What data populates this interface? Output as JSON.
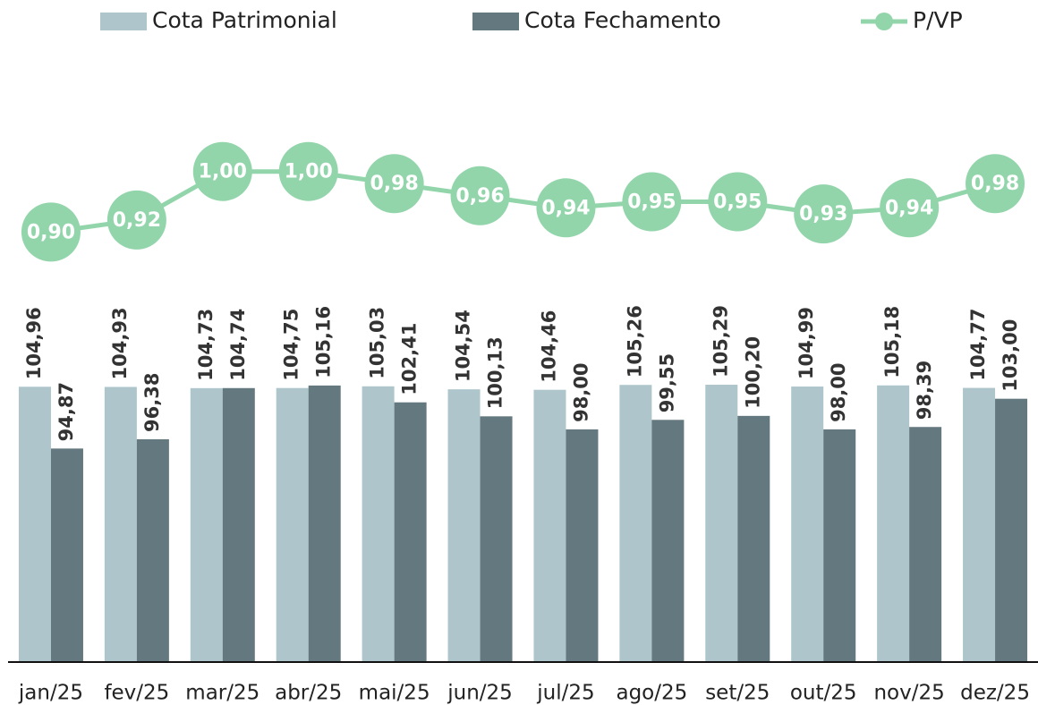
{
  "chart_data": {
    "type": "bar-line",
    "categories": [
      "jan/25",
      "fev/25",
      "mar/25",
      "abr/25",
      "mai/25",
      "jun/25",
      "jul/25",
      "ago/25",
      "set/25",
      "out/25",
      "nov/25",
      "dez/25"
    ],
    "series": [
      {
        "name": "Cota Patrimonial",
        "type": "bar",
        "color": "#adc5cb",
        "values": [
          104.96,
          104.93,
          104.73,
          104.75,
          105.03,
          104.54,
          104.46,
          105.26,
          105.29,
          104.99,
          105.18,
          104.77
        ],
        "value_labels": [
          "104,96",
          "104,93",
          "104,73",
          "104,75",
          "105,03",
          "104,54",
          "104,46",
          "105,26",
          "105,29",
          "104,99",
          "105,18",
          "104,77"
        ]
      },
      {
        "name": "Cota Fechamento",
        "type": "bar",
        "color": "#64787f",
        "values": [
          94.87,
          96.38,
          104.74,
          105.16,
          102.41,
          100.13,
          98.0,
          99.55,
          100.2,
          98.0,
          98.39,
          103.0
        ],
        "value_labels": [
          "94,87",
          "96,38",
          "104,74",
          "105,16",
          "102,41",
          "100,13",
          "98,00",
          "99,55",
          "100,20",
          "98,00",
          "98,39",
          "103,00"
        ]
      },
      {
        "name": "P/VP",
        "type": "line",
        "axis": "y2",
        "color": "#92d5ab",
        "values": [
          0.9,
          0.92,
          1.0,
          1.0,
          0.98,
          0.96,
          0.94,
          0.95,
          0.95,
          0.93,
          0.94,
          0.98
        ],
        "value_labels": [
          "0,90",
          "0,92",
          "1,00",
          "1,00",
          "0,98",
          "0,96",
          "0,94",
          "0,95",
          "0,95",
          "0,93",
          "0,94",
          "0,98"
        ]
      }
    ],
    "ylim": [
      60,
      150
    ],
    "y2lim": [
      0.19,
      1.1
    ],
    "legend": "top"
  }
}
